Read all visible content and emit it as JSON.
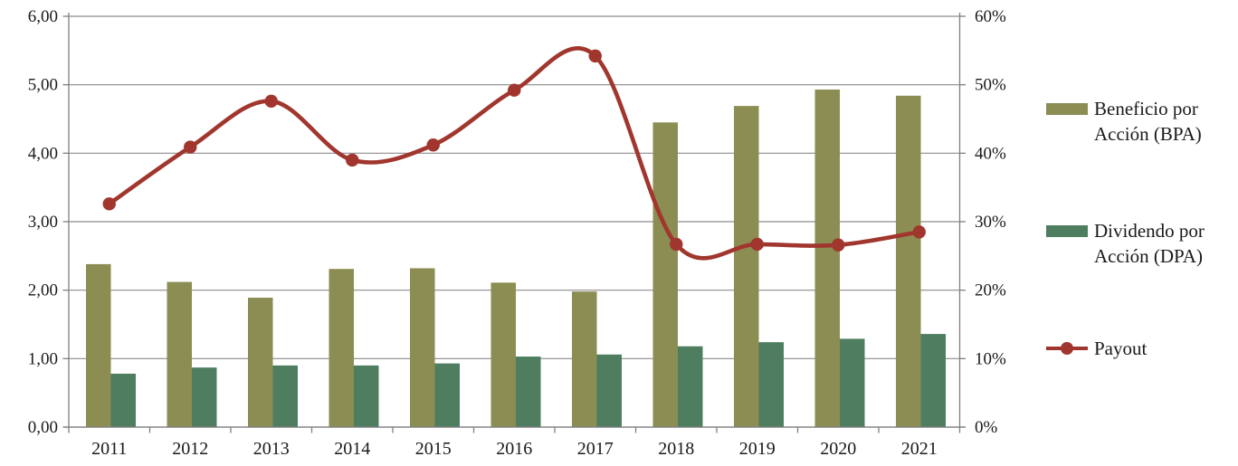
{
  "chart_data": {
    "type": "combo-bar-line",
    "title": "",
    "categories": [
      "2011",
      "2012",
      "2013",
      "2014",
      "2015",
      "2016",
      "2017",
      "2018",
      "2019",
      "2020",
      "2021"
    ],
    "series": [
      {
        "name": "Beneficio por Acción (BPA)",
        "type": "bar",
        "axis": "left",
        "color": "#8C8D53",
        "values": [
          2.38,
          2.12,
          1.89,
          2.31,
          2.32,
          2.11,
          1.98,
          4.45,
          4.69,
          4.93,
          4.84
        ]
      },
      {
        "name": "Dividendo por Acción (DPA)",
        "type": "bar",
        "axis": "left",
        "color": "#4E7D60",
        "values": [
          0.78,
          0.87,
          0.9,
          0.9,
          0.93,
          1.03,
          1.06,
          1.18,
          1.24,
          1.29,
          1.36
        ]
      },
      {
        "name": "Payout",
        "type": "line-smooth",
        "axis": "right",
        "color": "#A0362D",
        "values": [
          32.6,
          40.9,
          47.6,
          39.0,
          41.2,
          49.2,
          54.2,
          26.7,
          26.7,
          26.6,
          28.5
        ]
      }
    ],
    "left_axis": {
      "min": 0,
      "max": 6,
      "step": 1,
      "tick_labels": [
        "0,00",
        "1,00",
        "2,00",
        "3,00",
        "4,00",
        "5,00",
        "6,00"
      ]
    },
    "right_axis": {
      "min": 0,
      "max": 60,
      "step": 10,
      "tick_labels": [
        "0%",
        "10%",
        "20%",
        "30%",
        "40%",
        "50%",
        "60%"
      ]
    },
    "grid": true,
    "legend_position": "right"
  },
  "legend": {
    "bpa_line1": "Beneficio por",
    "bpa_line2": "Acción (BPA)",
    "dpa_line1": "Dividendo por",
    "dpa_line2": "Acción (DPA)",
    "payout": "Payout"
  },
  "colors": {
    "bpa_bar": "#8C8D53",
    "dpa_bar": "#4E7D60",
    "payout_line": "#A0362D",
    "gridline": "#8C8C8C",
    "axis": "#808080",
    "text": "#1a1a1a"
  }
}
